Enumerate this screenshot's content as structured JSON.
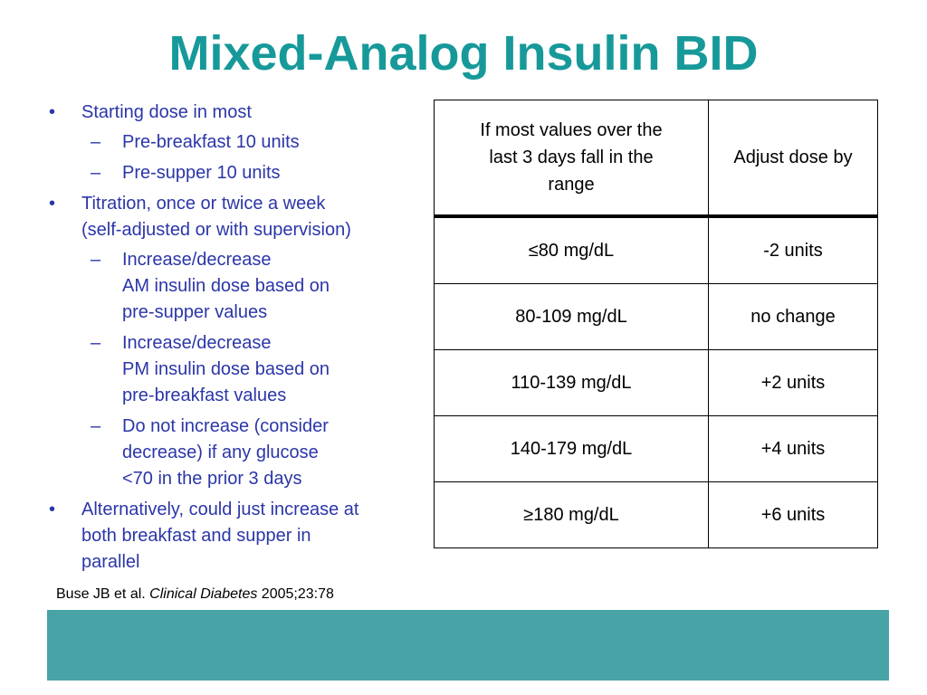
{
  "title": "Mixed-Analog Insulin BID",
  "bullets": {
    "b1": "Starting dose in most",
    "b1_sub1": "Pre-breakfast 10 units",
    "b1_sub2": "Pre-supper 10 units",
    "b2_line1": "Titration, once or twice a week",
    "b2_line2": "(self-adjusted or with supervision)",
    "b2_sub1_line1": "Increase/decrease",
    "b2_sub1_line2": "AM insulin dose based on",
    "b2_sub1_line3": "pre-supper values",
    "b2_sub2_line1": "Increase/decrease",
    "b2_sub2_line2": "PM insulin dose based on",
    "b2_sub2_line3": "pre-breakfast values",
    "b2_sub3_line1": "Do not increase (consider",
    "b2_sub3_line2": "decrease) if any glucose",
    "b2_sub3_line3": "<70 in the prior 3 days",
    "b3_line1": "Alternatively, could just increase at",
    "b3_line2": "both breakfast and supper in",
    "b3_line3": "parallel"
  },
  "markers": {
    "bullet": "•",
    "dash": "–"
  },
  "citation": {
    "authors": "Buse JB et al.",
    "journal": "Clinical Diabetes",
    "ref": "2005;23:78"
  },
  "table": {
    "header": {
      "col1_line1": "If most values over the",
      "col1_line2": "last 3 days fall in the",
      "col1_line3": "range",
      "col2": "Adjust dose by"
    },
    "rows": [
      {
        "range": "≤80 mg/dL",
        "adjust": "-2 units"
      },
      {
        "range": "80-109 mg/dL",
        "adjust": "no change"
      },
      {
        "range": "110-139 mg/dL",
        "adjust": "+2 units"
      },
      {
        "range": "140-179 mg/dL",
        "adjust": "+4 units"
      },
      {
        "range": "≥180 mg/dL",
        "adjust": "+6 units"
      }
    ]
  },
  "colors": {
    "title": "#17999a",
    "bullet_text": "#2b36a8",
    "footer_bar": "#48a3a7"
  }
}
